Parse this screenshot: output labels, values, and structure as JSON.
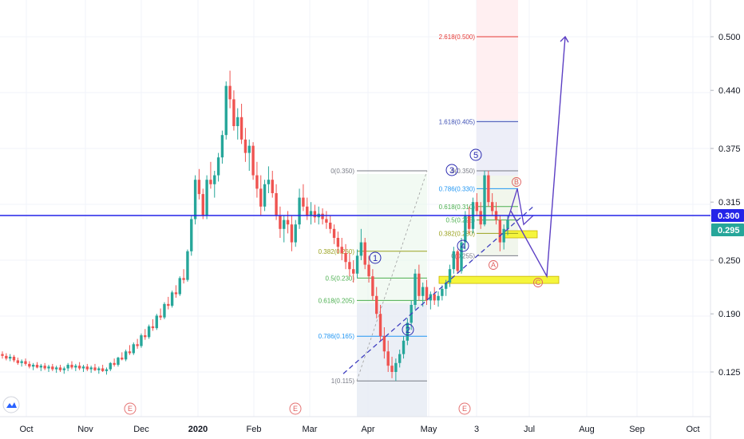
{
  "chart_data": {
    "type": "candlestick",
    "title": "",
    "xlabel": "",
    "ylabel": "",
    "y_axis": {
      "position": "right",
      "ticks": [
        "0.500",
        "0.440",
        "0.375",
        "0.315",
        "0.250",
        "0.190",
        "0.125"
      ],
      "ylim": [
        0.085,
        0.535
      ]
    },
    "x_axis": {
      "ticks": [
        "Oct",
        "Nov",
        "Dec",
        "2020",
        "Feb",
        "Mar",
        "Apr",
        "May",
        "3",
        "Jul",
        "Aug",
        "Sep",
        "Oct"
      ]
    },
    "price_tags": [
      {
        "value": 0.3,
        "label": "0.300",
        "color": "#2424e8"
      },
      {
        "value": 0.295,
        "label": "0.295",
        "color": "#26a69a"
      }
    ],
    "horizontal_line": {
      "value": 0.3,
      "color": "#2424e8"
    },
    "candles_start_date": "2019-09-16",
    "candles": [
      [
        0.145,
        0.148,
        0.14,
        0.143
      ],
      [
        0.143,
        0.146,
        0.138,
        0.14
      ],
      [
        0.14,
        0.145,
        0.137,
        0.142
      ],
      [
        0.142,
        0.144,
        0.136,
        0.138
      ],
      [
        0.138,
        0.141,
        0.133,
        0.135
      ],
      [
        0.135,
        0.139,
        0.131,
        0.137
      ],
      [
        0.137,
        0.14,
        0.132,
        0.134
      ],
      [
        0.134,
        0.137,
        0.129,
        0.131
      ],
      [
        0.131,
        0.135,
        0.127,
        0.133
      ],
      [
        0.133,
        0.136,
        0.129,
        0.13
      ],
      [
        0.13,
        0.134,
        0.126,
        0.132
      ],
      [
        0.132,
        0.135,
        0.127,
        0.129
      ],
      [
        0.129,
        0.133,
        0.125,
        0.131
      ],
      [
        0.131,
        0.134,
        0.126,
        0.128
      ],
      [
        0.128,
        0.132,
        0.124,
        0.13
      ],
      [
        0.13,
        0.133,
        0.125,
        0.127
      ],
      [
        0.127,
        0.131,
        0.123,
        0.129
      ],
      [
        0.129,
        0.135,
        0.126,
        0.133
      ],
      [
        0.133,
        0.137,
        0.128,
        0.13
      ],
      [
        0.13,
        0.134,
        0.126,
        0.132
      ],
      [
        0.132,
        0.136,
        0.127,
        0.129
      ],
      [
        0.129,
        0.133,
        0.125,
        0.131
      ],
      [
        0.131,
        0.134,
        0.126,
        0.128
      ],
      [
        0.128,
        0.132,
        0.124,
        0.13
      ],
      [
        0.13,
        0.134,
        0.126,
        0.127
      ],
      [
        0.127,
        0.131,
        0.123,
        0.129
      ],
      [
        0.129,
        0.133,
        0.125,
        0.126
      ],
      [
        0.126,
        0.13,
        0.122,
        0.128
      ],
      [
        0.128,
        0.136,
        0.126,
        0.135
      ],
      [
        0.135,
        0.14,
        0.131,
        0.133
      ],
      [
        0.133,
        0.142,
        0.131,
        0.141
      ],
      [
        0.141,
        0.147,
        0.138,
        0.139
      ],
      [
        0.139,
        0.15,
        0.137,
        0.148
      ],
      [
        0.148,
        0.155,
        0.144,
        0.146
      ],
      [
        0.146,
        0.158,
        0.144,
        0.156
      ],
      [
        0.156,
        0.162,
        0.151,
        0.154
      ],
      [
        0.154,
        0.168,
        0.152,
        0.166
      ],
      [
        0.166,
        0.173,
        0.161,
        0.164
      ],
      [
        0.164,
        0.178,
        0.162,
        0.176
      ],
      [
        0.176,
        0.184,
        0.171,
        0.174
      ],
      [
        0.174,
        0.19,
        0.172,
        0.188
      ],
      [
        0.188,
        0.196,
        0.183,
        0.186
      ],
      [
        0.186,
        0.203,
        0.184,
        0.201
      ],
      [
        0.201,
        0.209,
        0.195,
        0.199
      ],
      [
        0.199,
        0.216,
        0.197,
        0.214
      ],
      [
        0.214,
        0.222,
        0.208,
        0.212
      ],
      [
        0.212,
        0.232,
        0.21,
        0.23
      ],
      [
        0.23,
        0.24,
        0.224,
        0.228
      ],
      [
        0.228,
        0.262,
        0.226,
        0.26
      ],
      [
        0.26,
        0.3,
        0.255,
        0.296
      ],
      [
        0.296,
        0.345,
        0.29,
        0.34
      ],
      [
        0.34,
        0.352,
        0.318,
        0.324
      ],
      [
        0.324,
        0.33,
        0.296,
        0.3
      ],
      [
        0.3,
        0.345,
        0.296,
        0.34
      ],
      [
        0.34,
        0.36,
        0.33,
        0.335
      ],
      [
        0.335,
        0.35,
        0.32,
        0.345
      ],
      [
        0.345,
        0.37,
        0.338,
        0.365
      ],
      [
        0.365,
        0.395,
        0.358,
        0.39
      ],
      [
        0.39,
        0.45,
        0.385,
        0.445
      ],
      [
        0.445,
        0.462,
        0.42,
        0.43
      ],
      [
        0.43,
        0.44,
        0.395,
        0.4
      ],
      [
        0.4,
        0.42,
        0.385,
        0.41
      ],
      [
        0.41,
        0.425,
        0.38,
        0.385
      ],
      [
        0.385,
        0.398,
        0.36,
        0.37
      ],
      [
        0.37,
        0.385,
        0.35,
        0.378
      ],
      [
        0.378,
        0.382,
        0.34,
        0.345
      ],
      [
        0.345,
        0.36,
        0.32,
        0.33
      ],
      [
        0.33,
        0.345,
        0.3,
        0.31
      ],
      [
        0.31,
        0.34,
        0.305,
        0.335
      ],
      [
        0.335,
        0.355,
        0.325,
        0.34
      ],
      [
        0.34,
        0.35,
        0.32,
        0.325
      ],
      [
        0.325,
        0.335,
        0.295,
        0.3
      ],
      [
        0.3,
        0.31,
        0.275,
        0.285
      ],
      [
        0.285,
        0.3,
        0.27,
        0.295
      ],
      [
        0.295,
        0.305,
        0.28,
        0.29
      ],
      [
        0.29,
        0.3,
        0.26,
        0.27
      ],
      [
        0.27,
        0.295,
        0.265,
        0.29
      ],
      [
        0.29,
        0.33,
        0.285,
        0.32
      ],
      [
        0.32,
        0.335,
        0.305,
        0.31
      ],
      [
        0.31,
        0.32,
        0.295,
        0.3
      ],
      [
        0.3,
        0.315,
        0.29,
        0.305
      ],
      [
        0.305,
        0.312,
        0.292,
        0.298
      ],
      [
        0.298,
        0.31,
        0.29,
        0.302
      ],
      [
        0.302,
        0.308,
        0.29,
        0.296
      ],
      [
        0.296,
        0.305,
        0.285,
        0.292
      ],
      [
        0.292,
        0.3,
        0.28,
        0.285
      ],
      [
        0.285,
        0.29,
        0.268,
        0.275
      ],
      [
        0.275,
        0.282,
        0.258,
        0.265
      ],
      [
        0.265,
        0.275,
        0.25,
        0.258
      ],
      [
        0.258,
        0.268,
        0.24,
        0.248
      ],
      [
        0.248,
        0.258,
        0.232,
        0.24
      ],
      [
        0.24,
        0.25,
        0.225,
        0.235
      ],
      [
        0.235,
        0.262,
        0.23,
        0.255
      ],
      [
        0.255,
        0.285,
        0.25,
        0.27
      ],
      [
        0.27,
        0.275,
        0.24,
        0.245
      ],
      [
        0.245,
        0.255,
        0.225,
        0.232
      ],
      [
        0.232,
        0.24,
        0.205,
        0.21
      ],
      [
        0.21,
        0.22,
        0.185,
        0.19
      ],
      [
        0.19,
        0.2,
        0.16,
        0.165
      ],
      [
        0.165,
        0.175,
        0.14,
        0.148
      ],
      [
        0.148,
        0.16,
        0.125,
        0.132
      ],
      [
        0.132,
        0.142,
        0.118,
        0.125
      ],
      [
        0.125,
        0.14,
        0.115,
        0.135
      ],
      [
        0.135,
        0.15,
        0.13,
        0.145
      ],
      [
        0.145,
        0.165,
        0.14,
        0.16
      ],
      [
        0.16,
        0.185,
        0.155,
        0.18
      ],
      [
        0.18,
        0.205,
        0.172,
        0.2
      ],
      [
        0.2,
        0.24,
        0.195,
        0.235
      ],
      [
        0.235,
        0.245,
        0.205,
        0.21
      ],
      [
        0.21,
        0.225,
        0.198,
        0.22
      ],
      [
        0.22,
        0.228,
        0.2,
        0.205
      ],
      [
        0.205,
        0.215,
        0.195,
        0.212
      ],
      [
        0.212,
        0.22,
        0.2,
        0.205
      ],
      [
        0.205,
        0.215,
        0.198,
        0.21
      ],
      [
        0.21,
        0.222,
        0.205,
        0.218
      ],
      [
        0.218,
        0.228,
        0.21,
        0.225
      ],
      [
        0.225,
        0.245,
        0.22,
        0.24
      ],
      [
        0.24,
        0.265,
        0.235,
        0.26
      ],
      [
        0.26,
        0.262,
        0.235,
        0.238
      ],
      [
        0.238,
        0.275,
        0.235,
        0.27
      ],
      [
        0.27,
        0.305,
        0.262,
        0.3
      ],
      [
        0.3,
        0.31,
        0.28,
        0.285
      ],
      [
        0.285,
        0.32,
        0.28,
        0.315
      ],
      [
        0.315,
        0.325,
        0.3,
        0.305
      ],
      [
        0.305,
        0.315,
        0.285,
        0.29
      ],
      [
        0.29,
        0.35,
        0.288,
        0.345
      ],
      [
        0.345,
        0.35,
        0.31,
        0.315
      ],
      [
        0.315,
        0.325,
        0.3,
        0.305
      ],
      [
        0.305,
        0.315,
        0.29,
        0.295
      ],
      [
        0.295,
        0.3,
        0.26,
        0.27
      ],
      [
        0.27,
        0.29,
        0.262,
        0.285
      ],
      [
        0.285,
        0.3,
        0.278,
        0.295
      ]
    ],
    "fib_retracement_left": {
      "levels": [
        {
          "label": "0(0.350)",
          "value": 0.35,
          "color": "#787b86"
        },
        {
          "label": "0.382(0.260)",
          "value": 0.26,
          "color": "#9aa21e"
        },
        {
          "label": "0.5(0.230)",
          "value": 0.23,
          "color": "#4caf50"
        },
        {
          "label": "0.618(0.205)",
          "value": 0.205,
          "color": "#4caf50"
        },
        {
          "label": "0.786(0.165)",
          "value": 0.165,
          "color": "#2196f3"
        },
        {
          "label": "1(0.115)",
          "value": 0.115,
          "color": "#787b86"
        }
      ]
    },
    "fib_retracement_right": {
      "levels": [
        {
          "label": "0(0.350)",
          "value": 0.35,
          "color": "#787b86"
        },
        {
          "label": "0.786(0.330)",
          "value": 0.33,
          "color": "#2196f3"
        },
        {
          "label": "0.618(0.310)",
          "value": 0.31,
          "color": "#4caf50"
        },
        {
          "label": "0.5(0.295)",
          "value": 0.295,
          "color": "#4caf50"
        },
        {
          "label": "0.382(0.280)",
          "value": 0.28,
          "color": "#9aa21e"
        },
        {
          "label": "0(0.255)",
          "value": 0.255,
          "color": "#787b86"
        }
      ]
    },
    "fib_extension": {
      "levels": [
        {
          "label": "2.618(0.500)",
          "value": 0.5,
          "color": "#e53935"
        },
        {
          "label": "1.618(0.405)",
          "value": 0.405,
          "color": "#3f51b5"
        }
      ]
    },
    "wave_labels": [
      "1",
      "2",
      "3",
      "4",
      "5"
    ],
    "abc_labels": [
      "A",
      "B",
      "C"
    ],
    "earnings_markers": [
      "E",
      "E",
      "E"
    ],
    "zones": [
      {
        "top": 0.283,
        "bottom": 0.275,
        "color": "#f5f53c"
      },
      {
        "top": 0.232,
        "bottom": 0.224,
        "color": "#f5f53c"
      }
    ]
  }
}
